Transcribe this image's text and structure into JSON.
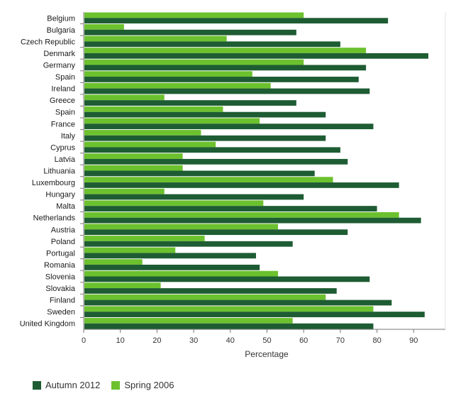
{
  "colors": {
    "autumn_2012": "#1e5c33",
    "spring_2006": "#6cc12e",
    "axis": "#777777",
    "grid": "#e3e3e3"
  },
  "chart_data": {
    "type": "bar",
    "orientation": "horizontal",
    "title": "",
    "xlabel": "Percentage",
    "ylabel": "",
    "xlim": [
      0,
      97
    ],
    "xticks": [
      0,
      10,
      20,
      30,
      40,
      50,
      60,
      70,
      80,
      90
    ],
    "grid": false,
    "legend_position": "bottom-left",
    "categories": [
      "Belgium",
      "Bulgaria",
      "Czech Republic",
      "Denmark",
      "Germany",
      "Spain",
      "Ireland",
      "Greece",
      "Spain",
      "France",
      "Italy",
      "Cyprus",
      "Latvia",
      "Lithuania",
      "Luxembourg",
      "Hungary",
      "Malta",
      "Netherlands",
      "Austria",
      "Poland",
      "Portugal",
      "Romania",
      "Slovenia",
      "Slovakia",
      "Finland",
      "Sweden",
      "United Kingdom"
    ],
    "series": [
      {
        "name": "Spring 2006",
        "color": "#6cc12e",
        "values": [
          60,
          11,
          39,
          77,
          60,
          46,
          51,
          22,
          38,
          48,
          32,
          36,
          27,
          27,
          68,
          22,
          49,
          86,
          53,
          33,
          25,
          16,
          53,
          21,
          66,
          79,
          57
        ]
      },
      {
        "name": "Autumn 2012",
        "color": "#1e5c33",
        "values": [
          83,
          58,
          70,
          94,
          77,
          75,
          78,
          58,
          66,
          79,
          66,
          70,
          72,
          63,
          86,
          60,
          80,
          92,
          72,
          57,
          47,
          48,
          78,
          69,
          84,
          93,
          79
        ]
      }
    ]
  },
  "legend": {
    "items": [
      {
        "label": "Autumn 2012",
        "color": "#1e5c33"
      },
      {
        "label": "Spring 2006",
        "color": "#6cc12e"
      }
    ]
  }
}
